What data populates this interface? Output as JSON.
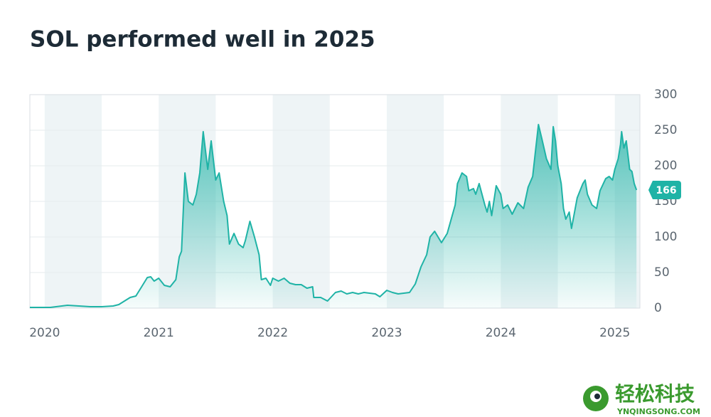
{
  "chart_data": {
    "type": "area",
    "title": "SOL performed well in 2025",
    "color": "#1fb3a6",
    "xlim": [
      2019.87,
      2025.22
    ],
    "xticks": [
      2020,
      2021,
      2022,
      2023,
      2024,
      2025
    ],
    "ylim": [
      0,
      300
    ],
    "yticks": [
      0,
      50,
      100,
      150,
      200,
      250,
      300
    ],
    "grid": true,
    "x": [
      2019.87,
      2019.95,
      2020.05,
      2020.15,
      2020.2,
      2020.3,
      2020.4,
      2020.5,
      2020.6,
      2020.65,
      2020.7,
      2020.75,
      2020.8,
      2020.85,
      2020.9,
      2020.93,
      2020.96,
      2021.0,
      2021.05,
      2021.1,
      2021.15,
      2021.18,
      2021.2,
      2021.23,
      2021.26,
      2021.3,
      2021.33,
      2021.36,
      2021.39,
      2021.43,
      2021.46,
      2021.5,
      2021.53,
      2021.57,
      2021.6,
      2021.62,
      2021.66,
      2021.7,
      2021.74,
      2021.76,
      2021.8,
      2021.84,
      2021.88,
      2021.9,
      2021.94,
      2021.98,
      2022.0,
      2022.05,
      2022.1,
      2022.15,
      2022.2,
      2022.25,
      2022.3,
      2022.35,
      2022.36,
      2022.42,
      2022.48,
      2022.55,
      2022.6,
      2022.65,
      2022.7,
      2022.75,
      2022.8,
      2022.85,
      2022.9,
      2022.94,
      2023.0,
      2023.05,
      2023.1,
      2023.15,
      2023.2,
      2023.25,
      2023.3,
      2023.35,
      2023.38,
      2023.42,
      2023.48,
      2023.53,
      2023.6,
      2023.62,
      2023.66,
      2023.7,
      2023.72,
      2023.76,
      2023.78,
      2023.81,
      2023.86,
      2023.88,
      2023.9,
      2023.92,
      2023.96,
      2024.0,
      2024.02,
      2024.06,
      2024.1,
      2024.15,
      2024.2,
      2024.24,
      2024.28,
      2024.3,
      2024.33,
      2024.36,
      2024.4,
      2024.44,
      2024.46,
      2024.48,
      2024.5,
      2024.53,
      2024.55,
      2024.57,
      2024.6,
      2024.62,
      2024.67,
      2024.72,
      2024.74,
      2024.76,
      2024.8,
      2024.84,
      2024.87,
      2024.92,
      2024.95,
      2024.98,
      2025.0,
      2025.03,
      2025.05,
      2025.06,
      2025.08,
      2025.1,
      2025.13,
      2025.15,
      2025.17,
      2025.19
    ],
    "values": [
      1,
      1,
      1,
      3,
      4,
      3,
      2,
      2,
      3,
      5,
      10,
      15,
      17,
      30,
      43,
      44,
      38,
      42,
      32,
      30,
      40,
      72,
      80,
      190,
      150,
      145,
      160,
      190,
      248,
      195,
      235,
      180,
      190,
      150,
      130,
      90,
      105,
      90,
      85,
      95,
      122,
      100,
      75,
      40,
      42,
      32,
      42,
      38,
      42,
      35,
      33,
      33,
      28,
      30,
      15,
      15,
      10,
      22,
      24,
      20,
      22,
      20,
      22,
      21,
      20,
      16,
      25,
      22,
      20,
      21,
      22,
      34,
      58,
      75,
      100,
      108,
      92,
      105,
      145,
      175,
      190,
      185,
      165,
      168,
      160,
      175,
      145,
      135,
      150,
      130,
      172,
      160,
      140,
      145,
      132,
      148,
      140,
      170,
      185,
      215,
      258,
      238,
      210,
      195,
      255,
      235,
      200,
      175,
      140,
      125,
      135,
      112,
      155,
      175,
      180,
      160,
      145,
      140,
      165,
      182,
      185,
      180,
      195,
      210,
      230,
      248,
      225,
      235,
      195,
      192,
      175,
      166
    ]
  },
  "watermark": {
    "name": "轻松科技",
    "site": "YNQINGSONG.COM"
  }
}
